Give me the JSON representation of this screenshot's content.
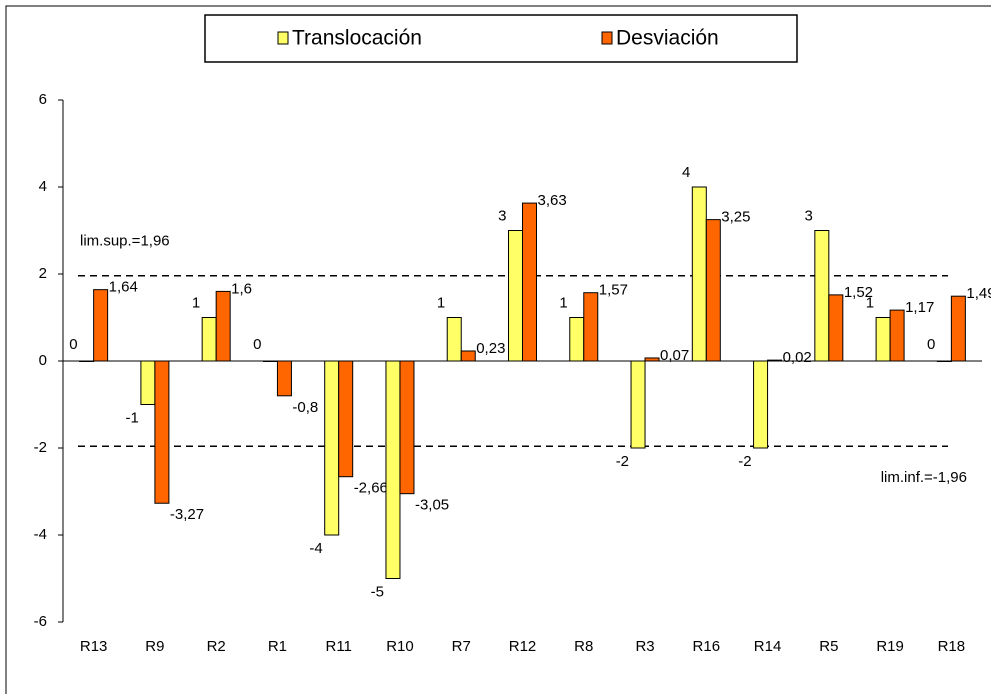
{
  "chart_data": {
    "type": "bar",
    "categories": [
      "R13",
      "R9",
      "R2",
      "R1",
      "R11",
      "R10",
      "R7",
      "R12",
      "R8",
      "R3",
      "R16",
      "R14",
      "R5",
      "R19",
      "R18"
    ],
    "series": [
      {
        "name": "Translocación",
        "color": "#ffff66",
        "values": [
          0,
          -1,
          1,
          0,
          -4,
          -5,
          1,
          3,
          1,
          -2,
          4,
          -2,
          3,
          1,
          0
        ]
      },
      {
        "name": "Desviación",
        "color": "#ff6600",
        "values": [
          1.64,
          -3.27,
          1.6,
          -0.8,
          -2.66,
          -3.05,
          0.23,
          3.63,
          1.57,
          0.07,
          3.25,
          0.02,
          1.52,
          1.17,
          1.49
        ],
        "value_labels": [
          "1,64",
          "-3,27",
          "1,6",
          "-0,8",
          "-2,66",
          "-3,05",
          "0,23",
          "3,63",
          "1,57",
          "0,07",
          "3,25",
          "0,02",
          "1,52",
          "1,17",
          "1,49"
        ]
      }
    ],
    "ylim": [
      -6,
      6
    ],
    "yticks": [
      -6,
      -4,
      -2,
      0,
      2,
      4,
      6
    ],
    "reference_lines": [
      {
        "value": 1.96,
        "label": "lim.sup.=1,96"
      },
      {
        "value": -1.96,
        "label": "lim.inf.=-1,96"
      }
    ],
    "legend": "top"
  }
}
